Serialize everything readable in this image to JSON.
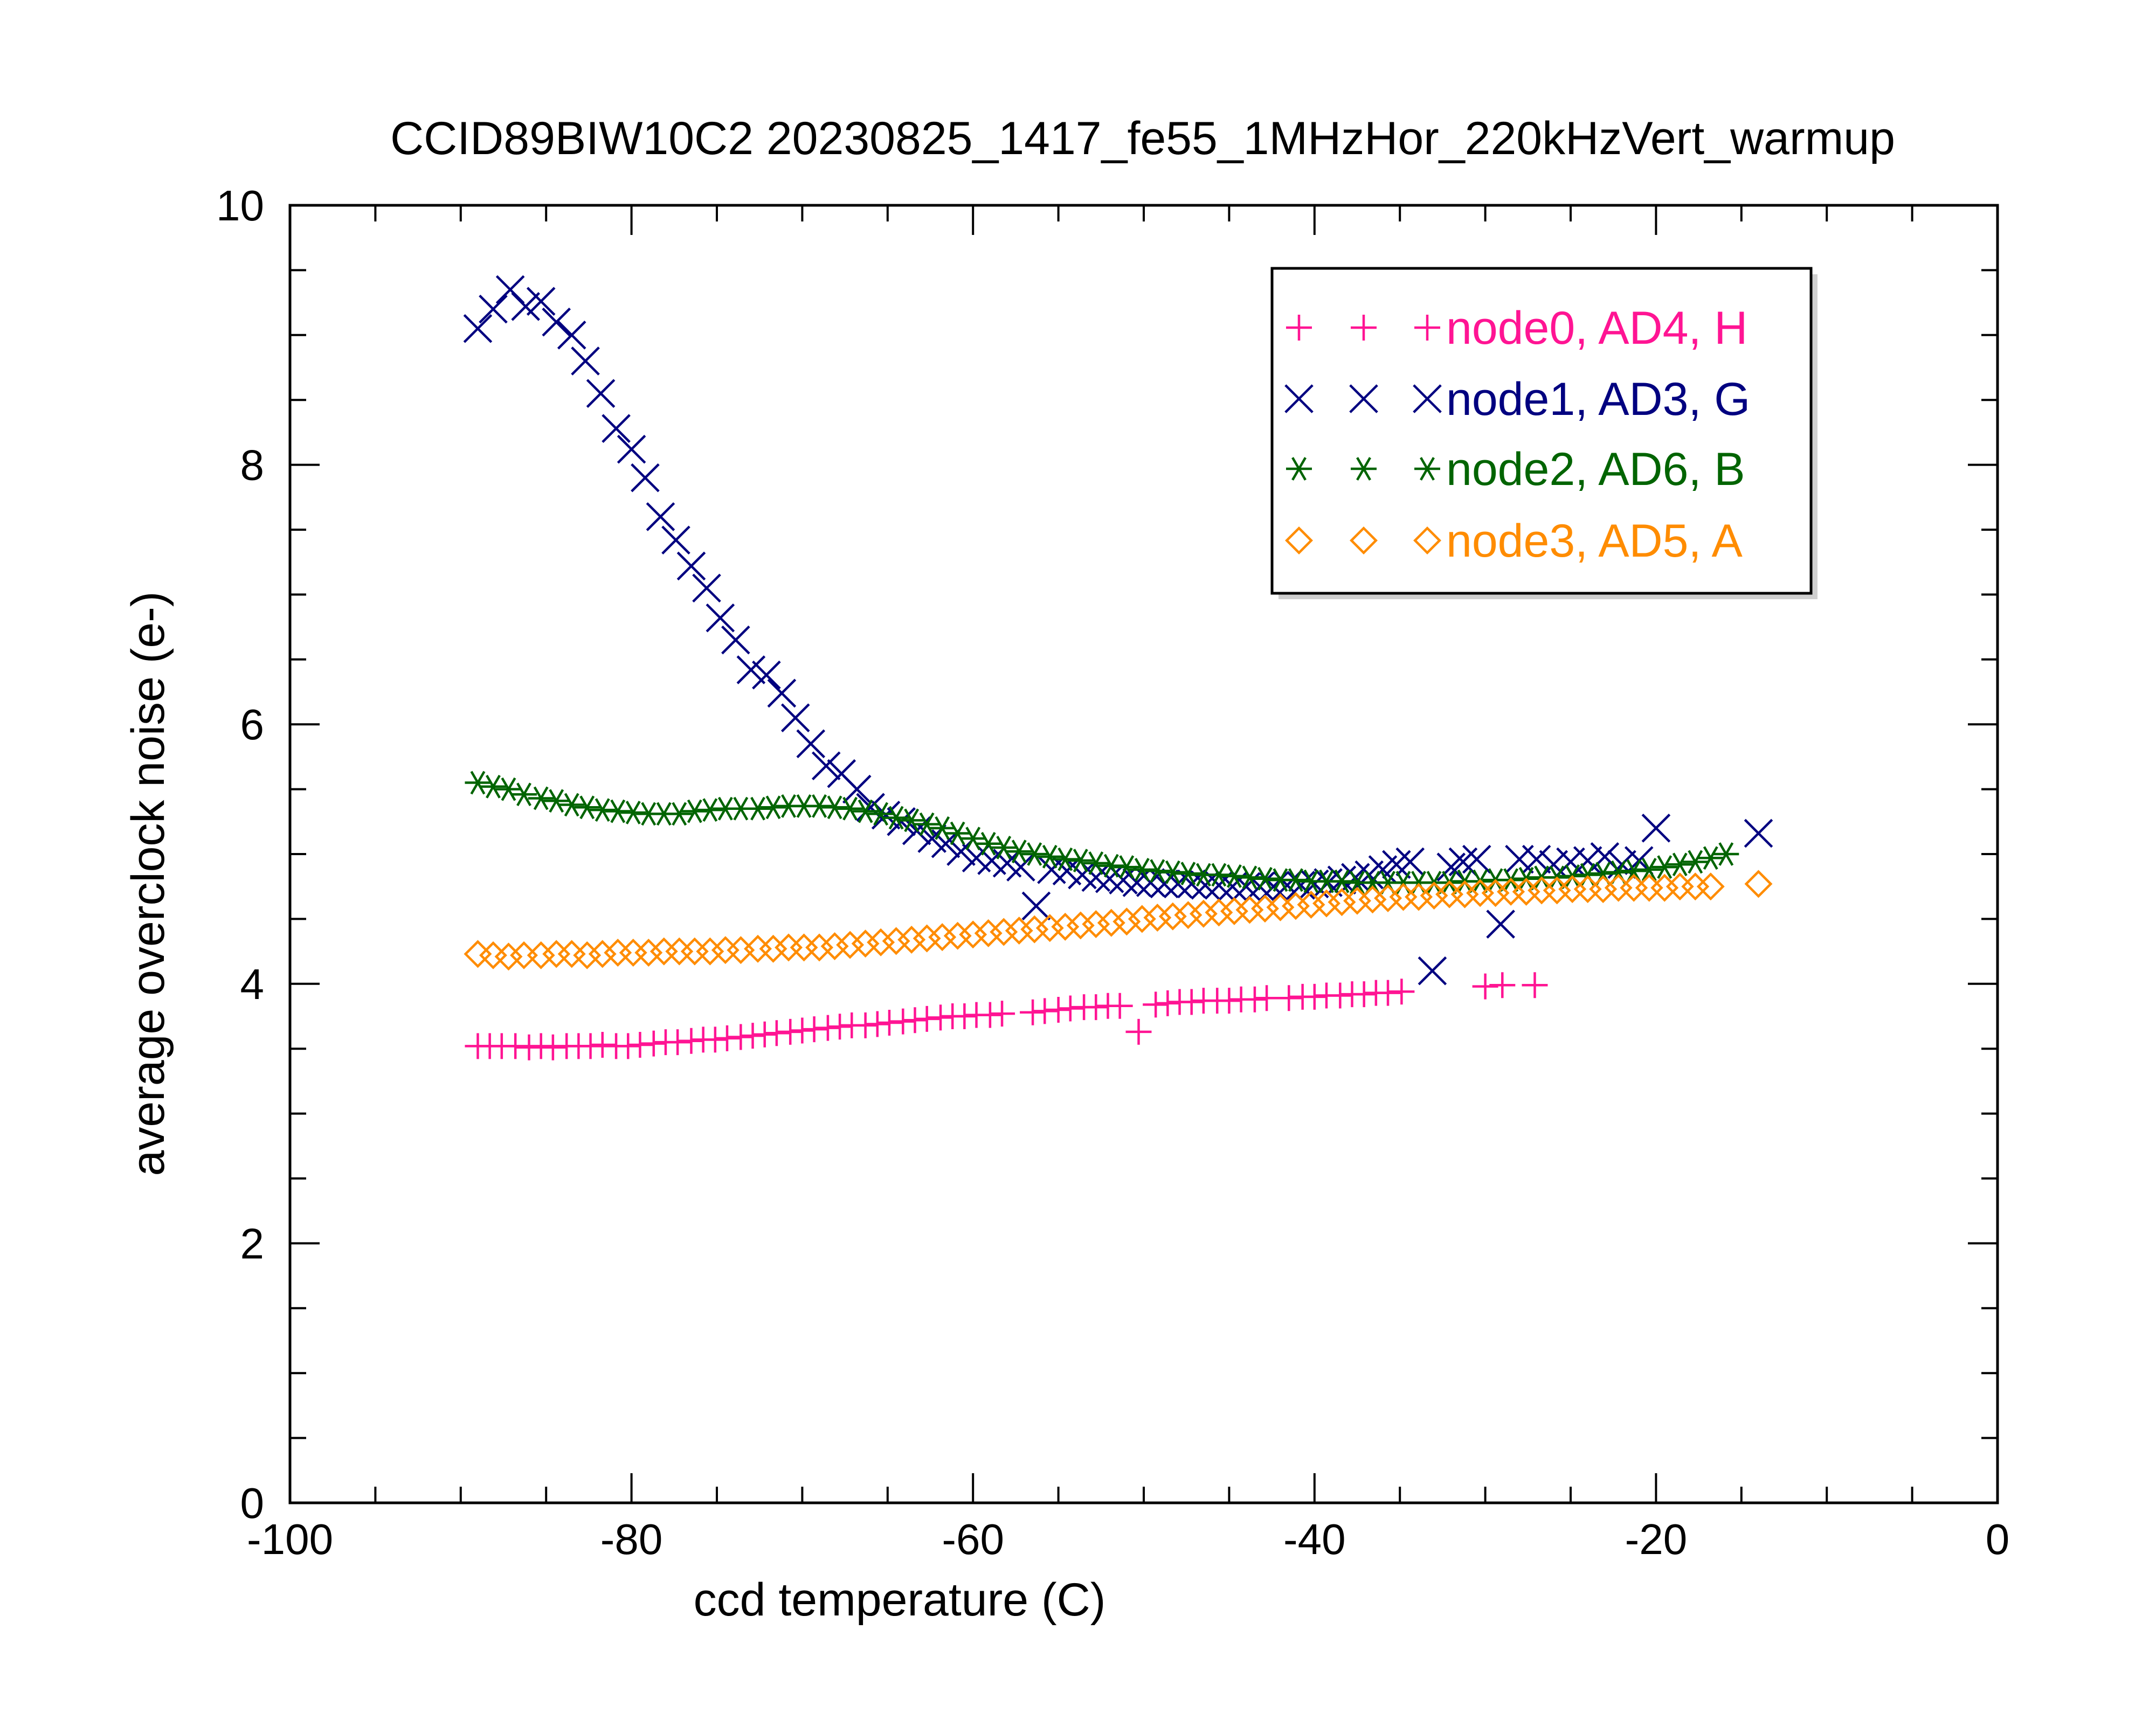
{
  "chart_data": {
    "type": "scatter",
    "title": "CCID89BIW10C2 20230825_1417_fe55_1MHzHor_220kHzVert_warmup",
    "xlabel": "ccd temperature (C)",
    "ylabel": "average overclock noise (e-)",
    "xlim": [
      -100,
      0
    ],
    "ylim": [
      0,
      10
    ],
    "xticks": [
      -100,
      -80,
      -60,
      -40,
      -20,
      0
    ],
    "xtick_labels": [
      "-100",
      "-80",
      "-60",
      "-40",
      "-20",
      "0"
    ],
    "yticks": [
      0,
      2,
      4,
      6,
      8,
      10
    ],
    "ytick_labels": [
      "0",
      "2",
      "4",
      "6",
      "8",
      "10"
    ],
    "grid": false,
    "legend_position": "top-right",
    "series": [
      {
        "name": "node0, AD4, H",
        "marker": "plus",
        "color": "#ff1493",
        "x": [
          -89,
          -88.3,
          -87.6,
          -86.8,
          -86,
          -85.3,
          -84.6,
          -83.8,
          -83.1,
          -82.4,
          -81.7,
          -80.9,
          -80.2,
          -79.5,
          -78.7,
          -78,
          -77.3,
          -76.5,
          -75.8,
          -75.1,
          -74.4,
          -73.6,
          -72.9,
          -72.2,
          -71.5,
          -70.7,
          -70,
          -69.3,
          -68.5,
          -67.8,
          -67.1,
          -66.3,
          -65.6,
          -64.9,
          -64.1,
          -63.4,
          -62.7,
          -61.9,
          -61.2,
          -60.5,
          -59.8,
          -59,
          -58.3,
          -56.5,
          -55.8,
          -55,
          -54.3,
          -53.5,
          -52.8,
          -52.1,
          -51.4,
          -50.3,
          -49.3,
          -48.6,
          -47.9,
          -47.2,
          -46.5,
          -45.7,
          -45,
          -44.3,
          -43.5,
          -42.8,
          -41.5,
          -40.7,
          -40,
          -39.3,
          -38.5,
          -37.8,
          -37.1,
          -36.4,
          -35.7,
          -34.9,
          -30,
          -29,
          -27.1
        ],
        "y": [
          3.52,
          3.52,
          3.52,
          3.52,
          3.51,
          3.52,
          3.51,
          3.52,
          3.52,
          3.52,
          3.53,
          3.52,
          3.52,
          3.53,
          3.54,
          3.55,
          3.55,
          3.56,
          3.57,
          3.57,
          3.58,
          3.59,
          3.6,
          3.61,
          3.62,
          3.63,
          3.64,
          3.65,
          3.66,
          3.67,
          3.68,
          3.68,
          3.69,
          3.7,
          3.71,
          3.72,
          3.73,
          3.74,
          3.75,
          3.75,
          3.76,
          3.76,
          3.77,
          3.78,
          3.79,
          3.8,
          3.81,
          3.82,
          3.82,
          3.83,
          3.83,
          3.63,
          3.84,
          3.85,
          3.86,
          3.86,
          3.87,
          3.87,
          3.87,
          3.88,
          3.88,
          3.89,
          3.89,
          3.9,
          3.9,
          3.91,
          3.91,
          3.92,
          3.92,
          3.93,
          3.93,
          3.94,
          3.98,
          3.99,
          3.99
        ]
      },
      {
        "name": "node1, AD3, G",
        "marker": "cross",
        "color": "#000080",
        "x": [
          -89,
          -88.1,
          -87.1,
          -86.2,
          -85.3,
          -84.4,
          -83.5,
          -82.7,
          -81.8,
          -80.9,
          -80,
          -79.2,
          -78.3,
          -77.4,
          -76.5,
          -75.6,
          -74.8,
          -73.9,
          -73,
          -72.1,
          -71.2,
          -70.4,
          -69.5,
          -68.6,
          -67.7,
          -66.8,
          -66,
          -65.1,
          -64.2,
          -63.3,
          -62.4,
          -61.6,
          -60.7,
          -59.8,
          -58.9,
          -58,
          -57.2,
          -56.3,
          -55.4,
          -54.5,
          -53.6,
          -52.8,
          -52,
          -51.2,
          -50.4,
          -49.6,
          -48.8,
          -48,
          -47.2,
          -46.4,
          -45.6,
          -44.8,
          -44,
          -43.2,
          -42.4,
          -41.6,
          -40.8,
          -40,
          -39.2,
          -38.4,
          -37.6,
          -36.8,
          -36,
          -35.2,
          -34.4,
          -33.1,
          -32,
          -31.3,
          -30.5,
          -29.1,
          -28,
          -27,
          -26,
          -25,
          -24,
          -23,
          -22,
          -21,
          -20,
          -14
        ],
        "y": [
          9.05,
          9.2,
          9.35,
          9.22,
          9.26,
          9.1,
          9.0,
          8.8,
          8.55,
          8.28,
          8.12,
          7.9,
          7.6,
          7.42,
          7.22,
          7.05,
          6.82,
          6.65,
          6.42,
          6.38,
          6.24,
          6.05,
          5.85,
          5.68,
          5.62,
          5.5,
          5.36,
          5.3,
          5.25,
          5.18,
          5.12,
          5.08,
          5.02,
          4.97,
          4.95,
          4.93,
          4.9,
          4.6,
          4.88,
          4.87,
          4.84,
          4.82,
          4.81,
          4.8,
          4.78,
          4.78,
          4.77,
          4.77,
          4.77,
          4.76,
          4.76,
          4.75,
          4.75,
          4.75,
          4.75,
          4.76,
          4.76,
          4.77,
          4.78,
          4.8,
          4.82,
          4.84,
          4.88,
          4.92,
          4.94,
          4.1,
          4.9,
          4.94,
          4.96,
          4.46,
          4.96,
          4.96,
          4.92,
          4.94,
          4.95,
          4.98,
          4.92,
          4.95,
          5.2,
          5.16
        ]
      },
      {
        "name": "node2, AD6, B",
        "marker": "star",
        "color": "#006400",
        "x": [
          -89,
          -88.1,
          -87.2,
          -86.3,
          -85.3,
          -84.4,
          -83.5,
          -82.6,
          -81.7,
          -80.8,
          -79.9,
          -79,
          -78.1,
          -77.2,
          -76.3,
          -75.4,
          -74.5,
          -73.6,
          -72.6,
          -71.7,
          -70.8,
          -69.9,
          -69,
          -68.1,
          -67.2,
          -66.3,
          -65.4,
          -64.5,
          -63.6,
          -62.7,
          -61.8,
          -60.9,
          -60,
          -59.1,
          -58.2,
          -57.3,
          -56.4,
          -55.5,
          -54.6,
          -53.7,
          -52.8,
          -51.9,
          -51,
          -50.1,
          -49.2,
          -48.3,
          -47.4,
          -46.5,
          -45.6,
          -44.7,
          -43.8,
          -42.9,
          -42,
          -41.1,
          -40.2,
          -39.3,
          -38.4,
          -37.5,
          -36.6,
          -35.7,
          -34.8,
          -33.9,
          -33,
          -32.1,
          -31.2,
          -30.3,
          -29.4,
          -28.5,
          -27.6,
          -26.7,
          -25.8,
          -24.9,
          -24,
          -23.1,
          -22.2,
          -21.3,
          -20.4,
          -19.5,
          -18.6,
          -17.7,
          -16.8,
          -15.9
        ],
        "y": [
          5.55,
          5.52,
          5.5,
          5.46,
          5.43,
          5.41,
          5.38,
          5.36,
          5.34,
          5.33,
          5.32,
          5.31,
          5.31,
          5.31,
          5.33,
          5.34,
          5.35,
          5.35,
          5.35,
          5.36,
          5.37,
          5.37,
          5.37,
          5.36,
          5.35,
          5.33,
          5.31,
          5.28,
          5.26,
          5.23,
          5.2,
          5.16,
          5.12,
          5.08,
          5.05,
          5.02,
          5.0,
          4.98,
          4.96,
          4.95,
          4.93,
          4.91,
          4.9,
          4.88,
          4.87,
          4.86,
          4.85,
          4.84,
          4.84,
          4.83,
          4.82,
          4.81,
          4.8,
          4.8,
          4.79,
          4.79,
          4.79,
          4.78,
          4.78,
          4.78,
          4.78,
          4.78,
          4.78,
          4.78,
          4.79,
          4.79,
          4.8,
          4.8,
          4.81,
          4.82,
          4.82,
          4.83,
          4.84,
          4.85,
          4.86,
          4.87,
          4.88,
          4.9,
          4.92,
          4.94,
          4.97,
          5.0
        ]
      },
      {
        "name": "node3, AD5, A",
        "marker": "diamond",
        "color": "#ff8c00",
        "x": [
          -89,
          -88.1,
          -87.2,
          -86.3,
          -85.3,
          -84.4,
          -83.5,
          -82.6,
          -81.7,
          -80.8,
          -79.9,
          -79,
          -78.1,
          -77.2,
          -76.3,
          -75.4,
          -74.5,
          -73.6,
          -72.6,
          -71.7,
          -70.8,
          -69.9,
          -69,
          -68.1,
          -67.2,
          -66.3,
          -65.4,
          -64.5,
          -63.6,
          -62.7,
          -61.8,
          -60.9,
          -60,
          -59.1,
          -58.2,
          -57.3,
          -56.4,
          -55.5,
          -54.6,
          -53.7,
          -52.8,
          -51.9,
          -51,
          -50.1,
          -49.2,
          -48.3,
          -47.4,
          -46.5,
          -45.6,
          -44.7,
          -43.8,
          -42.9,
          -42,
          -41.1,
          -40.2,
          -39.3,
          -38.4,
          -37.5,
          -36.6,
          -35.7,
          -34.8,
          -33.9,
          -33,
          -32.1,
          -31.2,
          -30.3,
          -29.4,
          -28.5,
          -27.6,
          -26.7,
          -25.8,
          -24.9,
          -24,
          -23.1,
          -22.2,
          -21.3,
          -20.4,
          -19.5,
          -18.6,
          -17.7,
          -16.8,
          -14
        ],
        "y": [
          4.23,
          4.22,
          4.21,
          4.22,
          4.22,
          4.23,
          4.23,
          4.22,
          4.23,
          4.24,
          4.24,
          4.24,
          4.25,
          4.25,
          4.25,
          4.25,
          4.26,
          4.26,
          4.27,
          4.27,
          4.28,
          4.28,
          4.28,
          4.29,
          4.3,
          4.31,
          4.32,
          4.33,
          4.34,
          4.35,
          4.36,
          4.37,
          4.38,
          4.39,
          4.4,
          4.41,
          4.42,
          4.43,
          4.44,
          4.45,
          4.46,
          4.47,
          4.48,
          4.5,
          4.51,
          4.52,
          4.53,
          4.54,
          4.55,
          4.56,
          4.57,
          4.58,
          4.59,
          4.6,
          4.61,
          4.62,
          4.63,
          4.64,
          4.65,
          4.66,
          4.67,
          4.67,
          4.68,
          4.69,
          4.69,
          4.7,
          4.7,
          4.71,
          4.71,
          4.72,
          4.72,
          4.73,
          4.73,
          4.73,
          4.74,
          4.74,
          4.74,
          4.74,
          4.75,
          4.75,
          4.75,
          4.77
        ]
      }
    ]
  }
}
